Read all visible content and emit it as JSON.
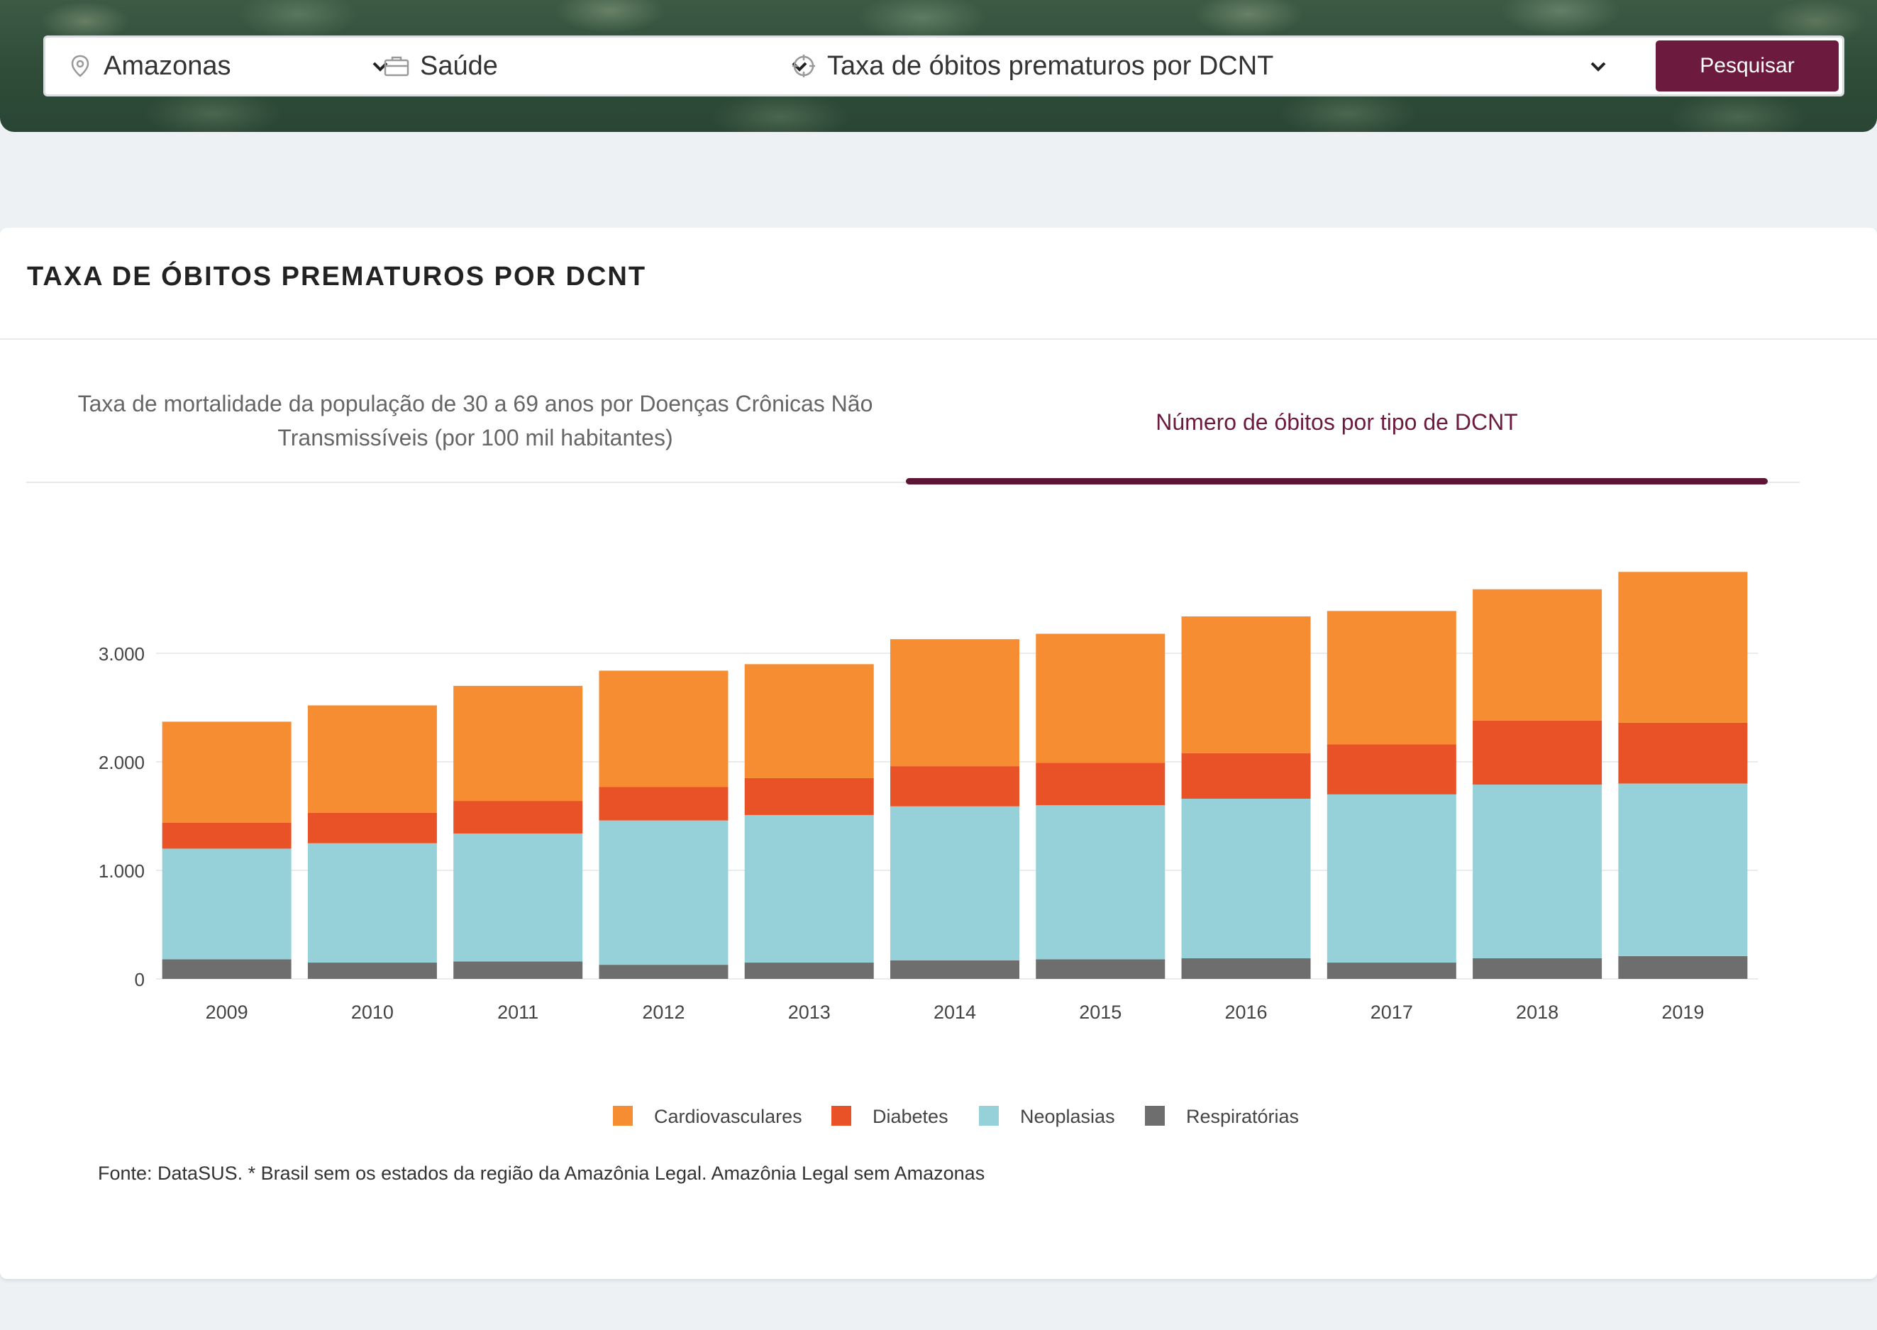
{
  "search": {
    "location": "Amazonas",
    "theme": "Saúde",
    "indicator": "Taxa de óbitos prematuros por DCNT",
    "button": "Pesquisar"
  },
  "card": {
    "title": "TAXA DE ÓBITOS PREMATUROS POR DCNT",
    "tab1": "Taxa de mortalidade da população de 30 a 69 anos por Doenças Crônicas Não Transmissíveis (por 100 mil habitantes)",
    "tab2": "Número de óbitos por tipo de DCNT",
    "footnote": "Fonte: DataSUS. * Brasil sem os estados da região da Amazônia Legal. Amazônia Legal sem Amazonas"
  },
  "colors": {
    "accent": "#6d1a3f",
    "cardiovasculares": "#f68d33",
    "diabetes": "#e85226",
    "neoplasias": "#96d1d9",
    "respiratorias": "#6e6e6e"
  },
  "chart_data": {
    "type": "bar",
    "stacked": true,
    "categories": [
      "2009",
      "2010",
      "2011",
      "2012",
      "2013",
      "2014",
      "2015",
      "2016",
      "2017",
      "2018",
      "2019"
    ],
    "series": [
      {
        "name": "Respiratórias",
        "color": "#6e6e6e",
        "values": [
          180,
          150,
          160,
          130,
          150,
          170,
          180,
          190,
          150,
          190,
          210
        ]
      },
      {
        "name": "Neoplasias",
        "color": "#96d1d9",
        "values": [
          1020,
          1100,
          1180,
          1330,
          1360,
          1420,
          1420,
          1470,
          1550,
          1600,
          1590
        ]
      },
      {
        "name": "Diabetes",
        "color": "#e85226",
        "values": [
          240,
          280,
          300,
          310,
          340,
          370,
          390,
          420,
          460,
          590,
          560
        ]
      },
      {
        "name": "Cardiovasculares",
        "color": "#f68d33",
        "values": [
          930,
          990,
          1060,
          1070,
          1050,
          1170,
          1190,
          1260,
          1230,
          1210,
          1390
        ]
      }
    ],
    "legend_order": [
      "Cardiovasculares",
      "Diabetes",
      "Neoplasias",
      "Respiratórias"
    ],
    "yticks": [
      "0",
      "1.000",
      "2.000",
      "3.000"
    ],
    "ylim": [
      0,
      3800
    ],
    "grid": true,
    "legend_position": "bottom-center"
  }
}
